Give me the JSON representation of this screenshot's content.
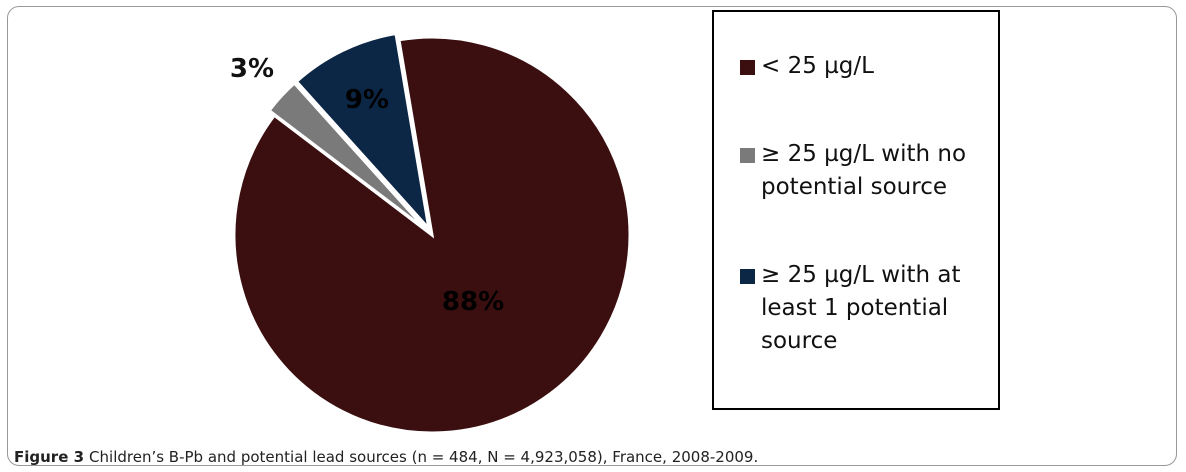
{
  "chart_data": {
    "type": "pie",
    "categories": [
      "< 25 µg/L",
      "≥ 25 µg/L with no potential source",
      "≥ 25 µg/L with at least 1 potential source"
    ],
    "values": [
      88,
      3,
      9
    ],
    "value_labels": [
      "88%",
      "3%",
      "9%"
    ],
    "colors": [
      "#3b0f10",
      "#7a7a7a",
      "#0c2645"
    ],
    "legend": "right"
  },
  "caption": {
    "label": "Figure 3",
    "text": "Children’s B-Pb and potential lead sources (n = 484, N = 4,923,058), France, 2008-2009."
  }
}
